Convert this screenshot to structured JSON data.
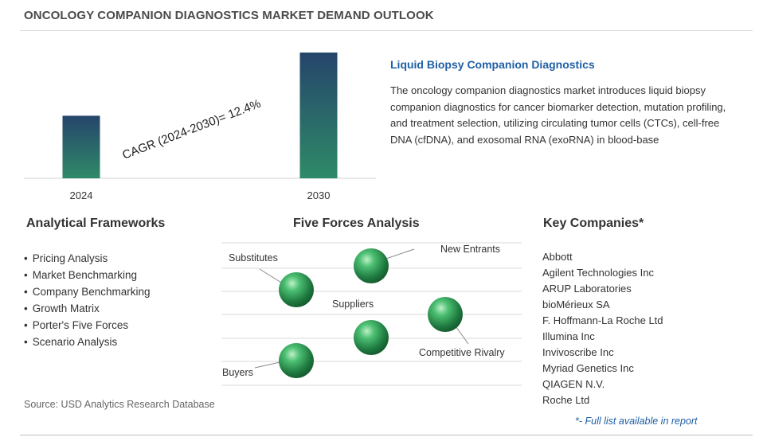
{
  "title": "ONCOLOGY COMPANION DIAGNOSTICS MARKET DEMAND OUTLOOK",
  "chart_data": {
    "type": "bar",
    "categories": [
      "2024",
      "2030"
    ],
    "values": [
      1.0,
      2.01
    ],
    "annotation": "CAGR (2024-2030)=  12.4%"
  },
  "liquid_biopsy": {
    "title": "Liquid Biopsy Companion Diagnostics",
    "text": "The oncology companion diagnostics market introduces liquid biopsy companion diagnostics for cancer biomarker detection, mutation profiling, and treatment selection, utilizing circulating tumor cells (CTCs), cell-free DNA (cfDNA), and exosomal RNA (exoRNA) in blood-base"
  },
  "analytical_frameworks": {
    "title": "Analytical Frameworks",
    "items": [
      "Pricing Analysis",
      "Market Benchmarking",
      "Company Benchmarking",
      "Growth Matrix",
      "Porter's Five Forces",
      "Scenario Analysis"
    ]
  },
  "five_forces": {
    "title": "Five Forces Analysis",
    "labels": {
      "substitutes": "Substitutes",
      "new_entrants": "New Entrants",
      "suppliers": "Suppliers",
      "competitive_rivalry": "Competitive Rivalry",
      "buyers": "Buyers"
    }
  },
  "key_companies": {
    "title": "Key Companies*",
    "items": [
      "Abbott",
      "Agilent Technologies Inc",
      "ARUP Laboratories",
      "bioMérieux SA",
      "F. Hoffmann-La Roche Ltd",
      "Illumina Inc",
      "Invivoscribe Inc",
      "Myriad Genetics Inc",
      "QIAGEN N.V.",
      "Roche Ltd"
    ],
    "note": "*- Full list available in report"
  },
  "source": "Source: USD Analytics Research Database",
  "colors": {
    "bar_top": "#25456b",
    "bar_bottom": "#2f8a68",
    "accent": "#1f5fa6",
    "sphere": "#2e9a55"
  }
}
